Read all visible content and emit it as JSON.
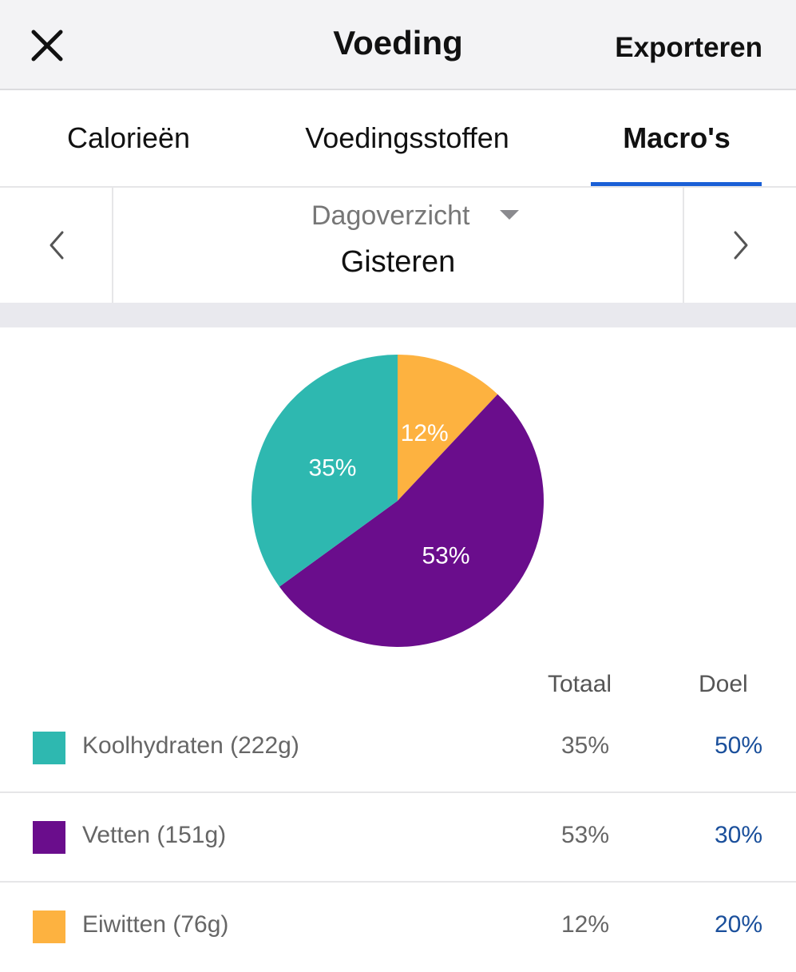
{
  "header": {
    "title": "Voeding",
    "export_label": "Exporteren"
  },
  "tabs": [
    {
      "label": "Calorieën",
      "active": false
    },
    {
      "label": "Voedingsstoffen",
      "active": false
    },
    {
      "label": "Macro's",
      "active": true
    }
  ],
  "date_nav": {
    "period": "Dagoverzicht",
    "date": "Gisteren"
  },
  "colors": {
    "carbs": "#2eb8b0",
    "fat": "#6a0d8c",
    "protein": "#fdb240",
    "accent": "#1a5fd6",
    "goal_text": "#1a4f9b"
  },
  "chart_data": {
    "type": "pie",
    "slices": [
      {
        "label": "Eiwitten",
        "value": 12,
        "display": "12%",
        "color": "#fdb240"
      },
      {
        "label": "Vetten",
        "value": 53,
        "display": "53%",
        "color": "#6a0d8c"
      },
      {
        "label": "Koolhydraten",
        "value": 35,
        "display": "35%",
        "color": "#2eb8b0"
      }
    ]
  },
  "table": {
    "col_total": "Totaal",
    "col_goal": "Doel",
    "rows": [
      {
        "name": "Koolhydraten (222g)",
        "total": "35%",
        "goal": "50%",
        "color": "#2eb8b0"
      },
      {
        "name": "Vetten (151g)",
        "total": "53%",
        "goal": "30%",
        "color": "#6a0d8c"
      },
      {
        "name": "Eiwitten (76g)",
        "total": "12%",
        "goal": "20%",
        "color": "#fdb240"
      }
    ]
  }
}
